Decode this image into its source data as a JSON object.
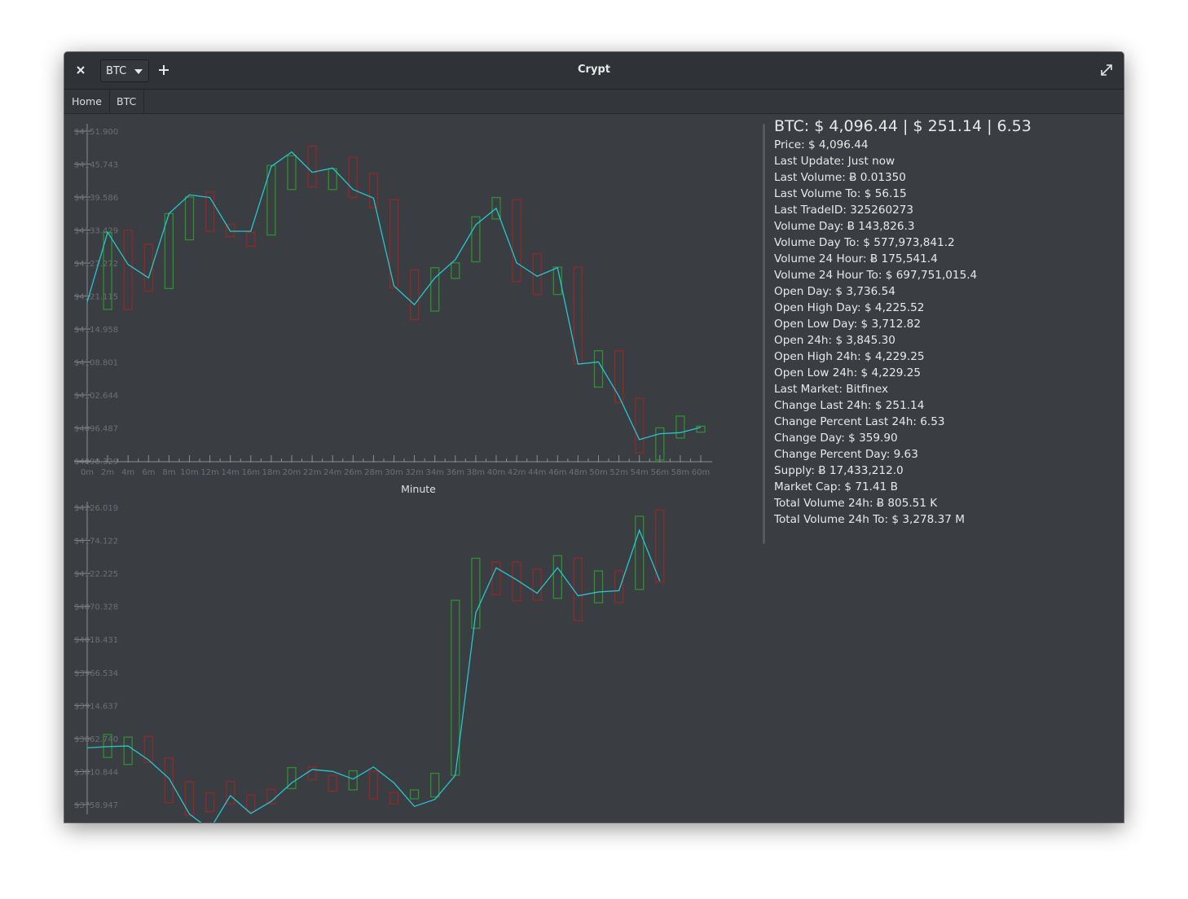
{
  "window": {
    "title": "Crypt"
  },
  "toolbar": {
    "coin_selected": "BTC"
  },
  "breadcrumb": {
    "items": [
      "Home",
      "BTC"
    ]
  },
  "stats": {
    "header": "BTC: $ 4,096.44 | $ 251.14 | 6.53",
    "rows": [
      "Price: $ 4,096.44",
      "Last Update: Just now",
      "Last Volume: Ƀ 0.01350",
      "Last Volume To: $ 56.15",
      "Last TradeID: 325260273",
      "Volume Day: Ƀ 143,826.3",
      "Volume Day To: $ 577,973,841.2",
      "Volume 24 Hour: Ƀ 175,541.4",
      "Volume 24 Hour To: $ 697,751,015.4",
      "Open Day: $ 3,736.54",
      "Open High Day: $ 4,225.52",
      "Open Low Day: $ 3,712.82",
      "Open 24h: $ 3,845.30",
      "Open High 24h: $ 4,229.25",
      "Open Low 24h: $ 4,229.25",
      "Last Market: Bitfinex",
      "Change Last 24h: $ 251.14",
      "Change Percent Last 24h: 6.53",
      "Change Day: $ 359.90",
      "Change Percent Day: 9.63",
      "Supply: Ƀ 17,433,212.0",
      "Market Cap: $ 71.41 B",
      "Total Volume 24h: Ƀ 805.51 K",
      "Total Volume 24h To: $ 3,278.37 M"
    ]
  },
  "colors": {
    "up": "#2f8f2f",
    "down": "#8e2a2a",
    "line": "#26c6d0",
    "axis": "#8a8e93"
  },
  "chart_data": [
    {
      "type": "candlestick",
      "xlabel": "Minute",
      "x_ticks": [
        "0m",
        "2m",
        "4m",
        "6m",
        "8m",
        "10m",
        "12m",
        "14m",
        "16m",
        "18m",
        "20m",
        "22m",
        "24m",
        "26m",
        "28m",
        "30m",
        "32m",
        "34m",
        "36m",
        "38m",
        "40m",
        "42m",
        "44m",
        "46m",
        "48m",
        "50m",
        "52m",
        "54m",
        "56m",
        "58m",
        "60m"
      ],
      "y_ticks": [
        "$4151.900",
        "$4145.743",
        "$4139.586",
        "$4133.429",
        "$4127.272",
        "$4121.115",
        "$4114.958",
        "$4108.801",
        "$4102.644",
        "$4096.487",
        "$4090.329"
      ],
      "ylim": [
        4090.329,
        4151.9
      ],
      "xlim": [
        0,
        60
      ],
      "candles": [
        {
          "x": 2,
          "open": 4118.6,
          "close": 4133.0
        },
        {
          "x": 4,
          "open": 4133.4,
          "close": 4118.6
        },
        {
          "x": 6,
          "open": 4130.8,
          "close": 4122.0
        },
        {
          "x": 8,
          "open": 4122.5,
          "close": 4136.5
        },
        {
          "x": 10,
          "open": 4131.6,
          "close": 4139.6
        },
        {
          "x": 12,
          "open": 4140.5,
          "close": 4133.2
        },
        {
          "x": 14,
          "open": 4134.5,
          "close": 4132.2
        },
        {
          "x": 16,
          "open": 4133.0,
          "close": 4130.4
        },
        {
          "x": 18,
          "open": 4132.5,
          "close": 4145.5
        },
        {
          "x": 20,
          "open": 4141.0,
          "close": 4147.3
        },
        {
          "x": 22,
          "open": 4149.1,
          "close": 4141.5
        },
        {
          "x": 24,
          "open": 4141.0,
          "close": 4144.9
        },
        {
          "x": 26,
          "open": 4147.0,
          "close": 4139.5
        },
        {
          "x": 28,
          "open": 4144.0,
          "close": 4137.6
        },
        {
          "x": 30,
          "open": 4139.1,
          "close": 4122.6
        },
        {
          "x": 32,
          "open": 4126.0,
          "close": 4116.7
        },
        {
          "x": 34,
          "open": 4118.3,
          "close": 4126.4
        },
        {
          "x": 36,
          "open": 4124.4,
          "close": 4127.3
        },
        {
          "x": 38,
          "open": 4127.5,
          "close": 4135.9
        },
        {
          "x": 40,
          "open": 4135.5,
          "close": 4139.5
        },
        {
          "x": 42,
          "open": 4139.1,
          "close": 4123.8
        },
        {
          "x": 44,
          "open": 4129.0,
          "close": 4121.4
        },
        {
          "x": 46,
          "open": 4121.4,
          "close": 4126.5
        },
        {
          "x": 48,
          "open": 4126.5,
          "close": 4108.5
        },
        {
          "x": 50,
          "open": 4104.1,
          "close": 4110.9
        },
        {
          "x": 52,
          "open": 4110.9,
          "close": 4101.2
        },
        {
          "x": 54,
          "open": 4102.0,
          "close": 4091.8
        },
        {
          "x": 56,
          "open": 4090.5,
          "close": 4096.5
        },
        {
          "x": 58,
          "open": 4094.6,
          "close": 4098.7
        },
        {
          "x": 60,
          "open": 4095.7,
          "close": 4096.8
        }
      ],
      "line": [
        4120.0,
        4133.0,
        4127.0,
        4124.5,
        4136.5,
        4140.0,
        4139.5,
        4133.2,
        4133.2,
        4145.3,
        4148.0,
        4144.2,
        4145.0,
        4141.0,
        4139.4,
        4123.0,
        4119.5,
        4124.5,
        4127.9,
        4134.4,
        4137.5,
        4127.3,
        4124.8,
        4126.4,
        4108.4,
        4108.8,
        4102.4,
        4094.3,
        4095.4,
        4095.6,
        4096.6
      ]
    },
    {
      "type": "candlestick",
      "y_ticks": [
        "$4226.019",
        "$4174.122",
        "$4122.225",
        "$4070.328",
        "$4018.431",
        "$3966.534",
        "$3914.637",
        "$3862.740",
        "$3810.844",
        "$3758.947"
      ],
      "ylim": [
        3758.947,
        4226.019
      ],
      "xlim": [
        0,
        60
      ],
      "candles": [
        {
          "x": 2,
          "open": 3833.0,
          "close": 3869.0
        },
        {
          "x": 4,
          "open": 3822.0,
          "close": 3865.0
        },
        {
          "x": 6,
          "open": 3866.0,
          "close": 3825.0
        },
        {
          "x": 8,
          "open": 3832.0,
          "close": 3762.0
        },
        {
          "x": 10,
          "open": 3795.0,
          "close": 3742.0
        },
        {
          "x": 12,
          "open": 3777.0,
          "close": 3748.0
        },
        {
          "x": 14,
          "open": 3795.0,
          "close": 3760.0
        },
        {
          "x": 16,
          "open": 3774.0,
          "close": 3748.0
        },
        {
          "x": 18,
          "open": 3783.0,
          "close": 3760.0
        },
        {
          "x": 20,
          "open": 3784.0,
          "close": 3817.0
        },
        {
          "x": 22,
          "open": 3818.0,
          "close": 3798.0
        },
        {
          "x": 24,
          "open": 3805.0,
          "close": 3780.0
        },
        {
          "x": 26,
          "open": 3782.0,
          "close": 3812.0
        },
        {
          "x": 28,
          "open": 3811.0,
          "close": 3768.0
        },
        {
          "x": 30,
          "open": 3778.0,
          "close": 3760.0
        },
        {
          "x": 32,
          "open": 3768.0,
          "close": 3782.0
        },
        {
          "x": 34,
          "open": 3771.0,
          "close": 3808.0
        },
        {
          "x": 36,
          "open": 3805.0,
          "close": 4080.0
        },
        {
          "x": 38,
          "open": 4036.0,
          "close": 4146.0
        },
        {
          "x": 40,
          "open": 4140.0,
          "close": 4089.0
        },
        {
          "x": 42,
          "open": 4140.0,
          "close": 4079.0
        },
        {
          "x": 44,
          "open": 4129.0,
          "close": 4080.0
        },
        {
          "x": 46,
          "open": 4083.0,
          "close": 4150.0
        },
        {
          "x": 48,
          "open": 4146.0,
          "close": 4048.0
        },
        {
          "x": 50,
          "open": 4076.0,
          "close": 4126.0
        },
        {
          "x": 52,
          "open": 4126.0,
          "close": 4076.0
        },
        {
          "x": 54,
          "open": 4097.0,
          "close": 4212.0
        },
        {
          "x": 56,
          "open": 4222.0,
          "close": 4108.0
        }
      ],
      "line": [
        3848.0,
        3850.0,
        3851.0,
        3829.0,
        3800.0,
        3744.0,
        3720.0,
        3773.0,
        3745.0,
        3764.0,
        3793.0,
        3814.0,
        3811.0,
        3799.0,
        3818.0,
        3793.0,
        3756.0,
        3767.0,
        3805.0,
        4060.0,
        4131.0,
        4112.0,
        4091.0,
        4131.0,
        4087.0,
        4093.0,
        4095.0,
        4190.0,
        4110.0
      ]
    }
  ]
}
